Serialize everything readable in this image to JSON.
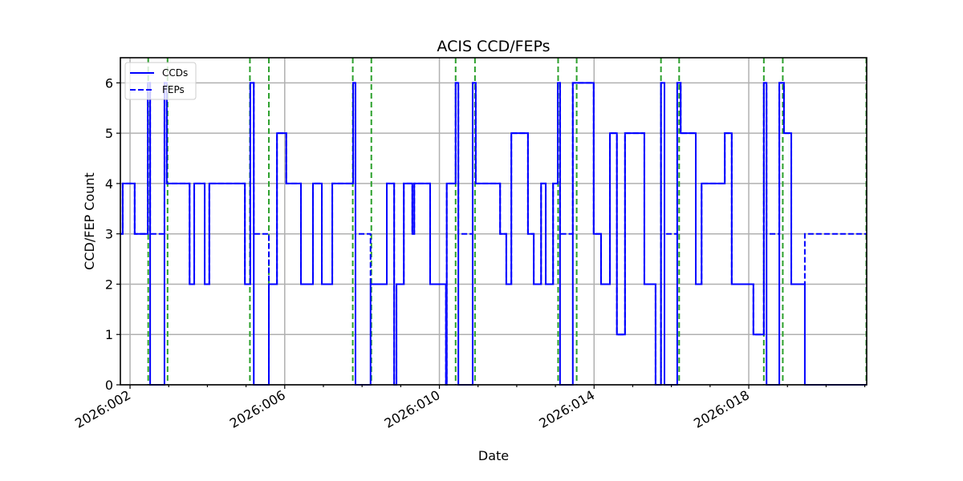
{
  "chart_data": {
    "type": "line",
    "title": "ACIS CCD/FEPs",
    "xlabel": "Date",
    "ylabel": "CCD/FEP Count",
    "xlim": [
      1.75,
      21.05
    ],
    "ylim": [
      0,
      6.5
    ],
    "grid": true,
    "legend_position": "upper left",
    "x_ticks": [
      {
        "value": 2,
        "label": "2026:002"
      },
      {
        "value": 6,
        "label": "2026:006"
      },
      {
        "value": 10,
        "label": "2026:010"
      },
      {
        "value": 14,
        "label": "2026:014"
      },
      {
        "value": 18,
        "label": "2026:018"
      }
    ],
    "y_ticks": [
      0,
      1,
      2,
      3,
      4,
      5,
      6
    ],
    "x_unit": "day of year 2026",
    "series": [
      {
        "name": "CCDs",
        "style": "solid",
        "color": "#0000ff",
        "steps": [
          [
            1.75,
            3
          ],
          [
            1.81,
            4
          ],
          [
            2.12,
            3
          ],
          [
            2.46,
            6
          ],
          [
            2.52,
            0
          ],
          [
            2.89,
            6
          ],
          [
            2.95,
            4
          ],
          [
            3.54,
            2
          ],
          [
            3.66,
            4
          ],
          [
            3.93,
            2
          ],
          [
            4.05,
            4
          ],
          [
            4.97,
            2
          ],
          [
            5.11,
            6
          ],
          [
            5.2,
            0
          ],
          [
            5.59,
            2
          ],
          [
            5.8,
            5
          ],
          [
            6.04,
            4
          ],
          [
            6.42,
            2
          ],
          [
            6.73,
            4
          ],
          [
            6.96,
            2
          ],
          [
            7.23,
            4
          ],
          [
            7.77,
            6
          ],
          [
            7.83,
            0
          ],
          [
            8.22,
            2
          ],
          [
            8.64,
            4
          ],
          [
            8.83,
            0
          ],
          [
            8.89,
            2
          ],
          [
            9.08,
            4
          ],
          [
            9.3,
            3
          ],
          [
            9.35,
            4
          ],
          [
            9.76,
            2
          ],
          [
            10.17,
            0
          ],
          [
            10.19,
            4
          ],
          [
            10.42,
            6
          ],
          [
            10.49,
            0
          ],
          [
            10.86,
            6
          ],
          [
            10.94,
            4
          ],
          [
            11.57,
            3
          ],
          [
            11.73,
            2
          ],
          [
            11.86,
            5
          ],
          [
            12.29,
            3
          ],
          [
            12.44,
            2
          ],
          [
            12.63,
            4
          ],
          [
            12.75,
            2
          ],
          [
            12.94,
            4
          ],
          [
            13.06,
            6
          ],
          [
            13.12,
            0
          ],
          [
            13.45,
            6
          ],
          [
            13.99,
            3
          ],
          [
            14.18,
            2
          ],
          [
            14.41,
            5
          ],
          [
            14.59,
            1
          ],
          [
            14.8,
            5
          ],
          [
            15.3,
            2
          ],
          [
            15.59,
            0
          ],
          [
            15.73,
            6
          ],
          [
            15.82,
            0
          ],
          [
            16.15,
            6
          ],
          [
            16.24,
            5
          ],
          [
            16.63,
            2
          ],
          [
            16.78,
            4
          ],
          [
            17.38,
            5
          ],
          [
            17.56,
            2
          ],
          [
            18.12,
            1
          ],
          [
            18.39,
            6
          ],
          [
            18.46,
            0
          ],
          [
            18.79,
            6
          ],
          [
            18.91,
            5
          ],
          [
            19.1,
            2
          ],
          [
            19.45,
            0
          ],
          [
            21.05,
            0
          ]
        ]
      },
      {
        "name": "FEPs",
        "style": "dashed",
        "color": "#0000ff",
        "steps": [
          [
            1.75,
            3
          ],
          [
            1.81,
            4
          ],
          [
            2.12,
            3
          ],
          [
            2.46,
            6
          ],
          [
            2.52,
            3
          ],
          [
            2.89,
            6
          ],
          [
            2.95,
            4
          ],
          [
            3.54,
            2
          ],
          [
            3.66,
            4
          ],
          [
            3.93,
            2
          ],
          [
            4.05,
            4
          ],
          [
            4.97,
            2
          ],
          [
            5.11,
            6
          ],
          [
            5.2,
            3
          ],
          [
            5.59,
            2
          ],
          [
            5.8,
            5
          ],
          [
            6.04,
            4
          ],
          [
            6.42,
            2
          ],
          [
            6.73,
            4
          ],
          [
            6.96,
            2
          ],
          [
            7.23,
            4
          ],
          [
            7.77,
            6
          ],
          [
            7.83,
            3
          ],
          [
            8.22,
            2
          ],
          [
            8.64,
            4
          ],
          [
            8.83,
            0
          ],
          [
            8.89,
            2
          ],
          [
            9.08,
            4
          ],
          [
            9.3,
            3
          ],
          [
            9.35,
            4
          ],
          [
            9.76,
            2
          ],
          [
            10.17,
            0
          ],
          [
            10.19,
            4
          ],
          [
            10.42,
            6
          ],
          [
            10.49,
            3
          ],
          [
            10.86,
            6
          ],
          [
            10.94,
            4
          ],
          [
            11.57,
            3
          ],
          [
            11.73,
            2
          ],
          [
            11.86,
            5
          ],
          [
            12.29,
            3
          ],
          [
            12.44,
            2
          ],
          [
            12.63,
            4
          ],
          [
            12.75,
            2
          ],
          [
            12.94,
            4
          ],
          [
            13.06,
            6
          ],
          [
            13.12,
            3
          ],
          [
            13.45,
            6
          ],
          [
            13.99,
            3
          ],
          [
            14.18,
            2
          ],
          [
            14.41,
            5
          ],
          [
            14.59,
            1
          ],
          [
            14.8,
            5
          ],
          [
            15.3,
            2
          ],
          [
            15.59,
            0
          ],
          [
            15.73,
            6
          ],
          [
            15.82,
            3
          ],
          [
            16.15,
            6
          ],
          [
            16.24,
            5
          ],
          [
            16.63,
            2
          ],
          [
            16.78,
            4
          ],
          [
            17.38,
            5
          ],
          [
            17.56,
            2
          ],
          [
            18.12,
            1
          ],
          [
            18.39,
            6
          ],
          [
            18.46,
            3
          ],
          [
            18.79,
            6
          ],
          [
            18.91,
            5
          ],
          [
            19.1,
            2
          ],
          [
            19.45,
            3
          ],
          [
            21.05,
            3
          ]
        ]
      }
    ],
    "vertical_markers": {
      "color": "#2ca02c",
      "style": "dashed",
      "x": [
        2.47,
        2.97,
        5.1,
        5.59,
        7.76,
        8.24,
        10.42,
        10.92,
        13.07,
        13.55,
        15.73,
        16.2,
        18.39,
        18.88,
        21.04
      ]
    }
  },
  "legend": {
    "items": [
      {
        "label": "CCDs",
        "style": "solid"
      },
      {
        "label": "FEPs",
        "style": "dashed"
      }
    ]
  }
}
